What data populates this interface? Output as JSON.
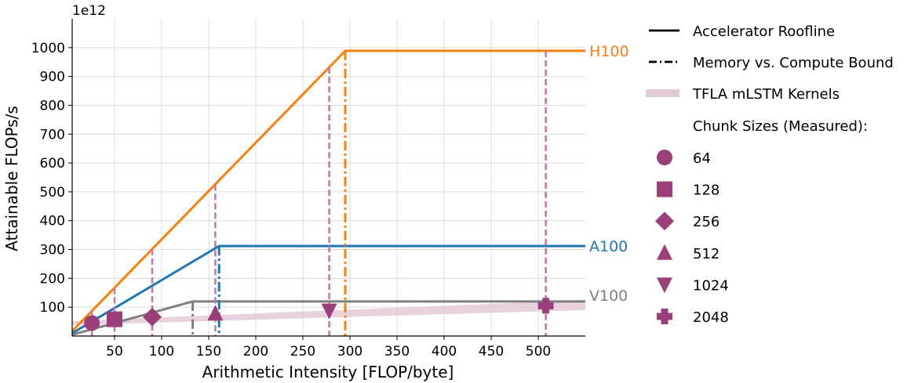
{
  "chart_data": {
    "type": "line",
    "x_label": "Arithmetic Intensity [FLOP/byte]",
    "y_label": "Attainable FLOPs/s",
    "y_offset_label": "1e12",
    "xlim": [
      5,
      550
    ],
    "ylim": [
      0,
      1100
    ],
    "x_ticks": [
      50,
      100,
      150,
      200,
      250,
      300,
      350,
      400,
      450,
      500
    ],
    "y_ticks": [
      100,
      200,
      300,
      400,
      500,
      600,
      700,
      800,
      900,
      1000
    ],
    "grid": true,
    "legend_position": "right",
    "rooflines": [
      {
        "name": "H100",
        "color": "#ff7f0e",
        "bandwidth": 3.35,
        "peak": 989,
        "ridge": 295
      },
      {
        "name": "A100",
        "color": "#1f77b4",
        "bandwidth": 1.94,
        "peak": 312,
        "ridge": 161
      },
      {
        "name": "V100",
        "color": "#7f7f7f",
        "bandwidth": 0.9,
        "peak": 120,
        "ridge": 133
      }
    ],
    "kernel_band": {
      "color": "#e3cad8",
      "x": [
        5,
        550
      ],
      "low": [
        38,
        90
      ],
      "high": [
        52,
        125
      ]
    },
    "measured_color": "#9b3f7a",
    "measured": [
      {
        "chunk": "64",
        "marker": "circle",
        "x": 26,
        "y": 45
      },
      {
        "chunk": "128",
        "marker": "square",
        "x": 50,
        "y": 58
      },
      {
        "chunk": "256",
        "marker": "diamond",
        "x": 90,
        "y": 66
      },
      {
        "chunk": "512",
        "marker": "triangle-up",
        "x": 157,
        "y": 78
      },
      {
        "chunk": "1024",
        "marker": "triangle-down",
        "x": 278,
        "y": 88
      },
      {
        "chunk": "2048",
        "marker": "plus",
        "x": 508,
        "y": 105
      }
    ],
    "legend": {
      "roofline_label": "Accelerator Roofline",
      "bound_label": "Memory vs. Compute Bound",
      "kernels_label": "TFLA mLSTM Kernels",
      "chunk_header": "Chunk Sizes (Measured):"
    }
  }
}
